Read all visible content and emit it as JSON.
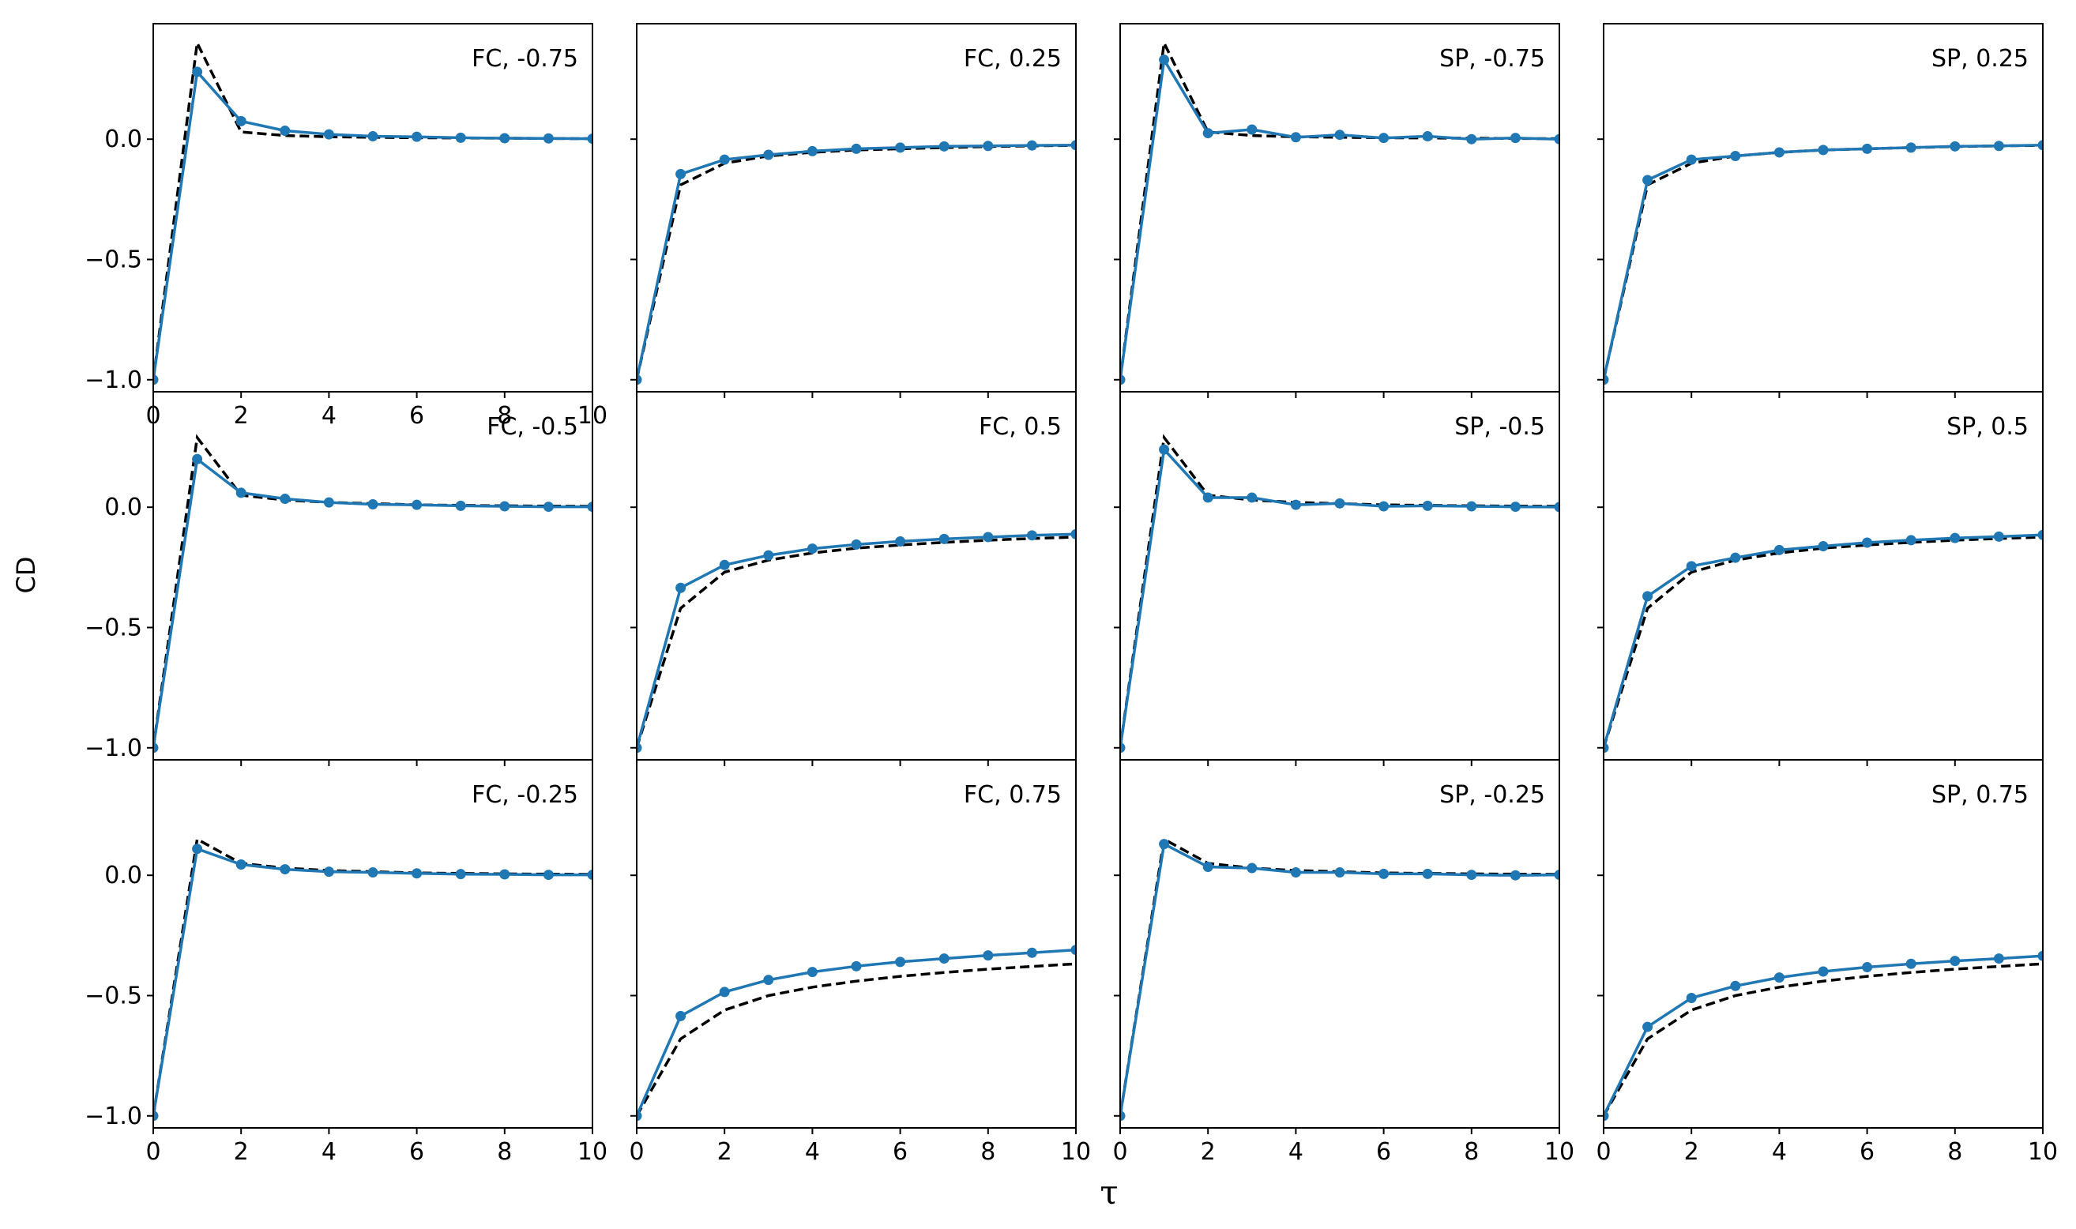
{
  "figure": {
    "xlabel": "τ",
    "ylabel": "CD"
  },
  "colors": {
    "model_series": "#1f77b4",
    "reference_series": "#000000",
    "frame": "#000000"
  },
  "chart_data": [
    {
      "type": "line",
      "panel_label": "FC, -0.75",
      "row": 0,
      "col": 0,
      "xlim": [
        0,
        10
      ],
      "ylim": [
        -1.05,
        0.48
      ],
      "x_ticks": [
        0,
        2,
        4,
        6,
        8,
        10
      ],
      "y_ticks": [
        -1.0,
        -0.5,
        0.0
      ],
      "x_tick_labels": [
        "0",
        "2",
        "4",
        "6",
        "8",
        "10"
      ],
      "y_tick_labels": [
        "−1.0",
        "−0.5",
        "0.0"
      ],
      "show_x_tick_labels": true,
      "show_y_tick_labels": true,
      "x": [
        0,
        1,
        2,
        3,
        4,
        5,
        6,
        7,
        8,
        9,
        10
      ],
      "series": [
        {
          "values": [
            -1.0,
            0.28,
            0.075,
            0.035,
            0.02,
            0.012,
            0.01,
            0.006,
            0.004,
            0.003,
            0.002
          ],
          "style": "solid-markers"
        },
        {
          "values": [
            -1.0,
            0.4,
            0.03,
            0.015,
            0.01,
            0.008,
            0.006,
            0.005,
            0.004,
            0.003,
            0.002
          ],
          "style": "dashed"
        }
      ]
    },
    {
      "type": "line",
      "panel_label": "FC, 0.25",
      "row": 0,
      "col": 1,
      "xlim": [
        0,
        10
      ],
      "ylim": [
        -1.05,
        0.48
      ],
      "x_ticks": [
        0,
        2,
        4,
        6,
        8,
        10
      ],
      "y_ticks": [
        -1.0,
        -0.5,
        0.0
      ],
      "x_tick_labels": [
        "0",
        "2",
        "4",
        "6",
        "8",
        "10"
      ],
      "y_tick_labels": [
        "−1.0",
        "−0.5",
        "0.0"
      ],
      "show_x_tick_labels": false,
      "show_y_tick_labels": false,
      "x": [
        0,
        1,
        2,
        3,
        4,
        5,
        6,
        7,
        8,
        9,
        10
      ],
      "series": [
        {
          "values": [
            -1.0,
            -0.145,
            -0.085,
            -0.065,
            -0.05,
            -0.04,
            -0.035,
            -0.03,
            -0.028,
            -0.026,
            -0.025
          ],
          "style": "solid-markers"
        },
        {
          "values": [
            -1.0,
            -0.19,
            -0.1,
            -0.07,
            -0.055,
            -0.045,
            -0.04,
            -0.035,
            -0.031,
            -0.028,
            -0.026
          ],
          "style": "dashed"
        }
      ]
    },
    {
      "type": "line",
      "panel_label": "SP, -0.75",
      "row": 0,
      "col": 2,
      "xlim": [
        0,
        10
      ],
      "ylim": [
        -1.05,
        0.48
      ],
      "x_ticks": [
        0,
        2,
        4,
        6,
        8,
        10
      ],
      "y_ticks": [
        -1.0,
        -0.5,
        0.0
      ],
      "x_tick_labels": [
        "0",
        "2",
        "4",
        "6",
        "8",
        "10"
      ],
      "y_tick_labels": [
        "−1.0",
        "−0.5",
        "0.0"
      ],
      "show_x_tick_labels": false,
      "show_y_tick_labels": false,
      "x": [
        0,
        1,
        2,
        3,
        4,
        5,
        6,
        7,
        8,
        9,
        10
      ],
      "series": [
        {
          "values": [
            -1.0,
            0.33,
            0.025,
            0.04,
            0.008,
            0.018,
            0.005,
            0.012,
            0.0,
            0.005,
            0.0
          ],
          "style": "solid-markers"
        },
        {
          "values": [
            -1.0,
            0.4,
            0.03,
            0.015,
            0.01,
            0.008,
            0.006,
            0.005,
            0.004,
            0.003,
            0.002
          ],
          "style": "dashed"
        }
      ]
    },
    {
      "type": "line",
      "panel_label": "SP, 0.25",
      "row": 0,
      "col": 3,
      "xlim": [
        0,
        10
      ],
      "ylim": [
        -1.05,
        0.48
      ],
      "x_ticks": [
        0,
        2,
        4,
        6,
        8,
        10
      ],
      "y_ticks": [
        -1.0,
        -0.5,
        0.0
      ],
      "x_tick_labels": [
        "0",
        "2",
        "4",
        "6",
        "8",
        "10"
      ],
      "y_tick_labels": [
        "−1.0",
        "−0.5",
        "0.0"
      ],
      "show_x_tick_labels": false,
      "show_y_tick_labels": false,
      "x": [
        0,
        1,
        2,
        3,
        4,
        5,
        6,
        7,
        8,
        9,
        10
      ],
      "series": [
        {
          "values": [
            -1.0,
            -0.17,
            -0.085,
            -0.07,
            -0.055,
            -0.045,
            -0.04,
            -0.035,
            -0.03,
            -0.028,
            -0.025
          ],
          "style": "solid-markers"
        },
        {
          "values": [
            -1.0,
            -0.19,
            -0.1,
            -0.07,
            -0.055,
            -0.045,
            -0.04,
            -0.035,
            -0.031,
            -0.028,
            -0.026
          ],
          "style": "dashed"
        }
      ]
    },
    {
      "type": "line",
      "panel_label": "FC, -0.5",
      "row": 1,
      "col": 0,
      "xlim": [
        0,
        10
      ],
      "ylim": [
        -1.05,
        0.48
      ],
      "x_ticks": [
        0,
        2,
        4,
        6,
        8,
        10
      ],
      "y_ticks": [
        -1.0,
        -0.5,
        0.0
      ],
      "x_tick_labels": [
        "0",
        "2",
        "4",
        "6",
        "8",
        "10"
      ],
      "y_tick_labels": [
        "−1.0",
        "−0.5",
        "0.0"
      ],
      "show_x_tick_labels": false,
      "show_y_tick_labels": true,
      "x": [
        0,
        1,
        2,
        3,
        4,
        5,
        6,
        7,
        8,
        9,
        10
      ],
      "series": [
        {
          "values": [
            -1.0,
            0.2,
            0.06,
            0.035,
            0.02,
            0.012,
            0.01,
            0.006,
            0.004,
            0.002,
            0.002
          ],
          "style": "solid-markers"
        },
        {
          "values": [
            -1.0,
            0.29,
            0.05,
            0.03,
            0.02,
            0.015,
            0.01,
            0.008,
            0.006,
            0.005,
            0.004
          ],
          "style": "dashed"
        }
      ]
    },
    {
      "type": "line",
      "panel_label": "FC, 0.5",
      "row": 1,
      "col": 1,
      "xlim": [
        0,
        10
      ],
      "ylim": [
        -1.05,
        0.48
      ],
      "x_ticks": [
        0,
        2,
        4,
        6,
        8,
        10
      ],
      "y_ticks": [
        -1.0,
        -0.5,
        0.0
      ],
      "x_tick_labels": [
        "0",
        "2",
        "4",
        "6",
        "8",
        "10"
      ],
      "y_tick_labels": [
        "−1.0",
        "−0.5",
        "0.0"
      ],
      "show_x_tick_labels": false,
      "show_y_tick_labels": false,
      "x": [
        0,
        1,
        2,
        3,
        4,
        5,
        6,
        7,
        8,
        9,
        10
      ],
      "series": [
        {
          "values": [
            -1.0,
            -0.335,
            -0.24,
            -0.2,
            -0.172,
            -0.155,
            -0.142,
            -0.132,
            -0.124,
            -0.117,
            -0.112
          ],
          "style": "solid-markers"
        },
        {
          "values": [
            -1.0,
            -0.42,
            -0.27,
            -0.22,
            -0.19,
            -0.17,
            -0.157,
            -0.146,
            -0.137,
            -0.13,
            -0.124
          ],
          "style": "dashed"
        }
      ]
    },
    {
      "type": "line",
      "panel_label": "SP, -0.5",
      "row": 1,
      "col": 2,
      "xlim": [
        0,
        10
      ],
      "ylim": [
        -1.05,
        0.48
      ],
      "x_ticks": [
        0,
        2,
        4,
        6,
        8,
        10
      ],
      "y_ticks": [
        -1.0,
        -0.5,
        0.0
      ],
      "x_tick_labels": [
        "0",
        "2",
        "4",
        "6",
        "8",
        "10"
      ],
      "y_tick_labels": [
        "−1.0",
        "−0.5",
        "0.0"
      ],
      "show_x_tick_labels": false,
      "show_y_tick_labels": false,
      "x": [
        0,
        1,
        2,
        3,
        4,
        5,
        6,
        7,
        8,
        9,
        10
      ],
      "series": [
        {
          "values": [
            -1.0,
            0.24,
            0.04,
            0.04,
            0.01,
            0.016,
            0.004,
            0.006,
            0.004,
            0.002,
            0.001
          ],
          "style": "solid-markers"
        },
        {
          "values": [
            -1.0,
            0.29,
            0.05,
            0.03,
            0.02,
            0.015,
            0.01,
            0.008,
            0.006,
            0.005,
            0.004
          ],
          "style": "dashed"
        }
      ]
    },
    {
      "type": "line",
      "panel_label": "SP, 0.5",
      "row": 1,
      "col": 3,
      "xlim": [
        0,
        10
      ],
      "ylim": [
        -1.05,
        0.48
      ],
      "x_ticks": [
        0,
        2,
        4,
        6,
        8,
        10
      ],
      "y_ticks": [
        -1.0,
        -0.5,
        0.0
      ],
      "x_tick_labels": [
        "0",
        "2",
        "4",
        "6",
        "8",
        "10"
      ],
      "y_tick_labels": [
        "−1.0",
        "−0.5",
        "0.0"
      ],
      "show_x_tick_labels": false,
      "show_y_tick_labels": false,
      "x": [
        0,
        1,
        2,
        3,
        4,
        5,
        6,
        7,
        8,
        9,
        10
      ],
      "series": [
        {
          "values": [
            -1.0,
            -0.37,
            -0.245,
            -0.21,
            -0.178,
            -0.162,
            -0.147,
            -0.137,
            -0.128,
            -0.122,
            -0.115
          ],
          "style": "solid-markers"
        },
        {
          "values": [
            -1.0,
            -0.42,
            -0.27,
            -0.22,
            -0.19,
            -0.17,
            -0.157,
            -0.146,
            -0.137,
            -0.13,
            -0.124
          ],
          "style": "dashed"
        }
      ]
    },
    {
      "type": "line",
      "panel_label": "FC, -0.25",
      "row": 2,
      "col": 0,
      "xlim": [
        0,
        10
      ],
      "ylim": [
        -1.05,
        0.48
      ],
      "x_ticks": [
        0,
        2,
        4,
        6,
        8,
        10
      ],
      "y_ticks": [
        -1.0,
        -0.5,
        0.0
      ],
      "x_tick_labels": [
        "0",
        "2",
        "4",
        "6",
        "8",
        "10"
      ],
      "y_tick_labels": [
        "−1.0",
        "−0.5",
        "0.0"
      ],
      "show_x_tick_labels": true,
      "show_y_tick_labels": true,
      "x": [
        0,
        1,
        2,
        3,
        4,
        5,
        6,
        7,
        8,
        9,
        10
      ],
      "series": [
        {
          "values": [
            -1.0,
            0.11,
            0.045,
            0.025,
            0.015,
            0.012,
            0.008,
            0.005,
            0.004,
            0.002,
            0.002
          ],
          "style": "solid-markers"
        },
        {
          "values": [
            -1.0,
            0.15,
            0.05,
            0.03,
            0.02,
            0.015,
            0.01,
            0.008,
            0.006,
            0.005,
            0.004
          ],
          "style": "dashed"
        }
      ]
    },
    {
      "type": "line",
      "panel_label": "FC, 0.75",
      "row": 2,
      "col": 1,
      "xlim": [
        0,
        10
      ],
      "ylim": [
        -1.05,
        0.48
      ],
      "x_ticks": [
        0,
        2,
        4,
        6,
        8,
        10
      ],
      "y_ticks": [
        -1.0,
        -0.5,
        0.0
      ],
      "x_tick_labels": [
        "0",
        "2",
        "4",
        "6",
        "8",
        "10"
      ],
      "y_tick_labels": [
        "−1.0",
        "−0.5",
        "0.0"
      ],
      "show_x_tick_labels": true,
      "show_y_tick_labels": false,
      "x": [
        0,
        1,
        2,
        3,
        4,
        5,
        6,
        7,
        8,
        9,
        10
      ],
      "series": [
        {
          "values": [
            -1.0,
            -0.585,
            -0.485,
            -0.435,
            -0.402,
            -0.378,
            -0.36,
            -0.346,
            -0.333,
            -0.322,
            -0.31
          ],
          "style": "solid-markers"
        },
        {
          "values": [
            -1.0,
            -0.68,
            -0.56,
            -0.5,
            -0.465,
            -0.44,
            -0.42,
            -0.404,
            -0.39,
            -0.379,
            -0.368
          ],
          "style": "dashed"
        }
      ]
    },
    {
      "type": "line",
      "panel_label": "SP, -0.25",
      "row": 2,
      "col": 2,
      "xlim": [
        0,
        10
      ],
      "ylim": [
        -1.05,
        0.48
      ],
      "x_ticks": [
        0,
        2,
        4,
        6,
        8,
        10
      ],
      "y_ticks": [
        -1.0,
        -0.5,
        0.0
      ],
      "x_tick_labels": [
        "0",
        "2",
        "4",
        "6",
        "8",
        "10"
      ],
      "y_tick_labels": [
        "−1.0",
        "−0.5",
        "0.0"
      ],
      "show_x_tick_labels": true,
      "show_y_tick_labels": false,
      "x": [
        0,
        1,
        2,
        3,
        4,
        5,
        6,
        7,
        8,
        9,
        10
      ],
      "series": [
        {
          "values": [
            -1.0,
            0.13,
            0.035,
            0.03,
            0.012,
            0.012,
            0.006,
            0.006,
            0.002,
            0.0,
            0.002
          ],
          "style": "solid-markers"
        },
        {
          "values": [
            -1.0,
            0.15,
            0.05,
            0.03,
            0.02,
            0.015,
            0.01,
            0.008,
            0.006,
            0.005,
            0.004
          ],
          "style": "dashed"
        }
      ]
    },
    {
      "type": "line",
      "panel_label": "SP, 0.75",
      "row": 2,
      "col": 3,
      "xlim": [
        0,
        10
      ],
      "ylim": [
        -1.05,
        0.48
      ],
      "x_ticks": [
        0,
        2,
        4,
        6,
        8,
        10
      ],
      "y_ticks": [
        -1.0,
        -0.5,
        0.0
      ],
      "x_tick_labels": [
        "0",
        "2",
        "4",
        "6",
        "8",
        "10"
      ],
      "y_tick_labels": [
        "−1.0",
        "−0.5",
        "0.0"
      ],
      "show_x_tick_labels": true,
      "show_y_tick_labels": false,
      "x": [
        0,
        1,
        2,
        3,
        4,
        5,
        6,
        7,
        8,
        9,
        10
      ],
      "series": [
        {
          "values": [
            -1.0,
            -0.63,
            -0.51,
            -0.46,
            -0.425,
            -0.4,
            -0.382,
            -0.368,
            -0.356,
            -0.346,
            -0.335
          ],
          "style": "solid-markers"
        },
        {
          "values": [
            -1.0,
            -0.68,
            -0.56,
            -0.5,
            -0.465,
            -0.44,
            -0.42,
            -0.404,
            -0.39,
            -0.379,
            -0.368
          ],
          "style": "dashed"
        }
      ]
    }
  ]
}
